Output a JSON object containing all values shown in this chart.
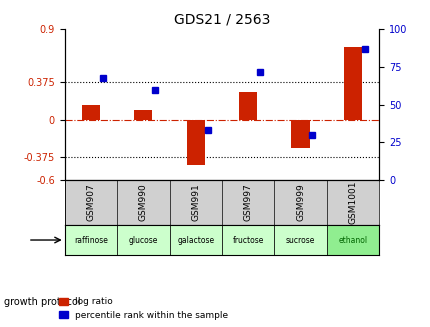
{
  "title": "GDS21 / 2563",
  "samples": [
    "GSM907",
    "GSM990",
    "GSM991",
    "GSM997",
    "GSM999",
    "GSM1001"
  ],
  "log_ratio": [
    0.15,
    0.1,
    -0.45,
    0.28,
    -0.28,
    0.72
  ],
  "percentile_rank": [
    68,
    60,
    33,
    72,
    30,
    87
  ],
  "protocols": [
    "raffinose",
    "glucose",
    "galactose",
    "fructose",
    "sucrose",
    "ethanol"
  ],
  "protocol_colors": [
    "#ccffcc",
    "#ccffcc",
    "#ccffcc",
    "#ccffcc",
    "#ccffcc",
    "#90ee90"
  ],
  "bar_color": "#cc2200",
  "blue_color": "#0000cc",
  "left_ylim": [
    -0.6,
    0.9
  ],
  "right_ylim": [
    0,
    100
  ],
  "left_yticks": [
    -0.6,
    -0.375,
    0,
    0.375,
    0.9
  ],
  "right_yticks": [
    0,
    25,
    50,
    75,
    100
  ],
  "hline_vals": [
    0.375,
    -0.375
  ],
  "zero_line": 0,
  "bar_width": 0.35
}
